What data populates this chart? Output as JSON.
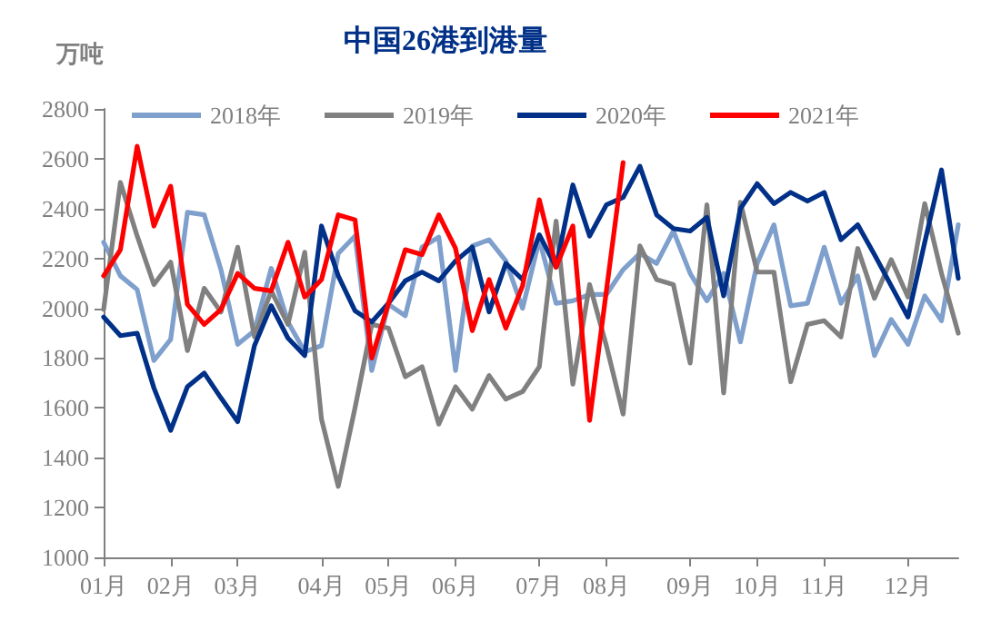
{
  "chart_data": {
    "type": "line",
    "title": "中国26港到港量",
    "ylabel": "万吨",
    "categories": [
      "01月",
      null,
      null,
      null,
      "02月",
      null,
      null,
      null,
      "03月",
      null,
      null,
      null,
      null,
      "04月",
      null,
      null,
      null,
      "05月",
      null,
      null,
      null,
      "06月",
      null,
      null,
      null,
      null,
      "07月",
      null,
      null,
      null,
      "08月",
      null,
      null,
      null,
      null,
      "09月",
      null,
      null,
      null,
      "10月",
      null,
      null,
      null,
      "11月",
      null,
      null,
      null,
      null,
      "12月",
      null,
      null,
      null
    ],
    "ylim": [
      1000,
      2800
    ],
    "yticks": [
      1000,
      1200,
      1400,
      1600,
      1800,
      2000,
      2200,
      2400,
      2600,
      2800
    ],
    "grid": false,
    "legend": "top",
    "marker": "none",
    "line_style": "solid",
    "series": [
      {
        "name": "2018年",
        "color": "#7f9fcc",
        "values": [
          2265,
          2130,
          2075,
          1790,
          1875,
          2385,
          2375,
          2155,
          1855,
          1910,
          2160,
          1945,
          1825,
          1850,
          2220,
          2290,
          1750,
          2015,
          1970,
          2245,
          2285,
          1750,
          2250,
          2275,
          2190,
          2000,
          2275,
          2020,
          2030,
          2055,
          2055,
          2155,
          2220,
          2180,
          2310,
          2140,
          2030,
          2140,
          1865,
          2180,
          2335,
          2010,
          2020,
          2245,
          2020,
          2130,
          1810,
          1955,
          1855,
          2050,
          1950,
          2335
        ]
      },
      {
        "name": "2019年",
        "color": "#808080",
        "values": [
          1995,
          2505,
          2290,
          2095,
          2185,
          1830,
          2080,
          1985,
          2245,
          1885,
          2070,
          1935,
          2225,
          1555,
          1285,
          1600,
          1935,
          1920,
          1725,
          1765,
          1535,
          1685,
          1595,
          1730,
          1635,
          1665,
          1765,
          2350,
          1695,
          2095,
          1850,
          1575,
          2250,
          2115,
          2095,
          1780,
          2415,
          1660,
          2425,
          2145,
          2145,
          1705,
          1935,
          1950,
          1885,
          2240,
          2040,
          2195,
          2045,
          2420,
          2140,
          1900
        ]
      },
      {
        "name": "2020年",
        "color": "#003087",
        "values": [
          1965,
          1890,
          1900,
          1680,
          1510,
          1685,
          1740,
          1640,
          1545,
          1850,
          2010,
          1880,
          1810,
          2330,
          2130,
          1990,
          1945,
          2020,
          2110,
          2145,
          2110,
          2190,
          2245,
          1985,
          2180,
          2115,
          2295,
          2165,
          2495,
          2290,
          2415,
          2445,
          2570,
          2375,
          2320,
          2310,
          2365,
          2050,
          2400,
          2500,
          2420,
          2465,
          2430,
          2465,
          2275,
          2335,
          2215,
          2090,
          1965,
          2265,
          2555,
          2120
        ]
      },
      {
        "name": "2021年",
        "color": "#ff0000",
        "values": [
          2130,
          2235,
          2650,
          2330,
          2490,
          2015,
          1935,
          1995,
          2140,
          2080,
          2070,
          2265,
          2045,
          2115,
          2375,
          2355,
          1800,
          2020,
          2235,
          2215,
          2375,
          2240,
          1910,
          2115,
          1920,
          2090,
          2435,
          2165,
          2330,
          1550,
          2070,
          2585,
          null,
          null,
          null,
          null,
          null,
          null,
          null,
          null,
          null,
          null,
          null,
          null,
          null,
          null,
          null,
          null,
          null,
          null,
          null,
          null
        ]
      }
    ]
  }
}
